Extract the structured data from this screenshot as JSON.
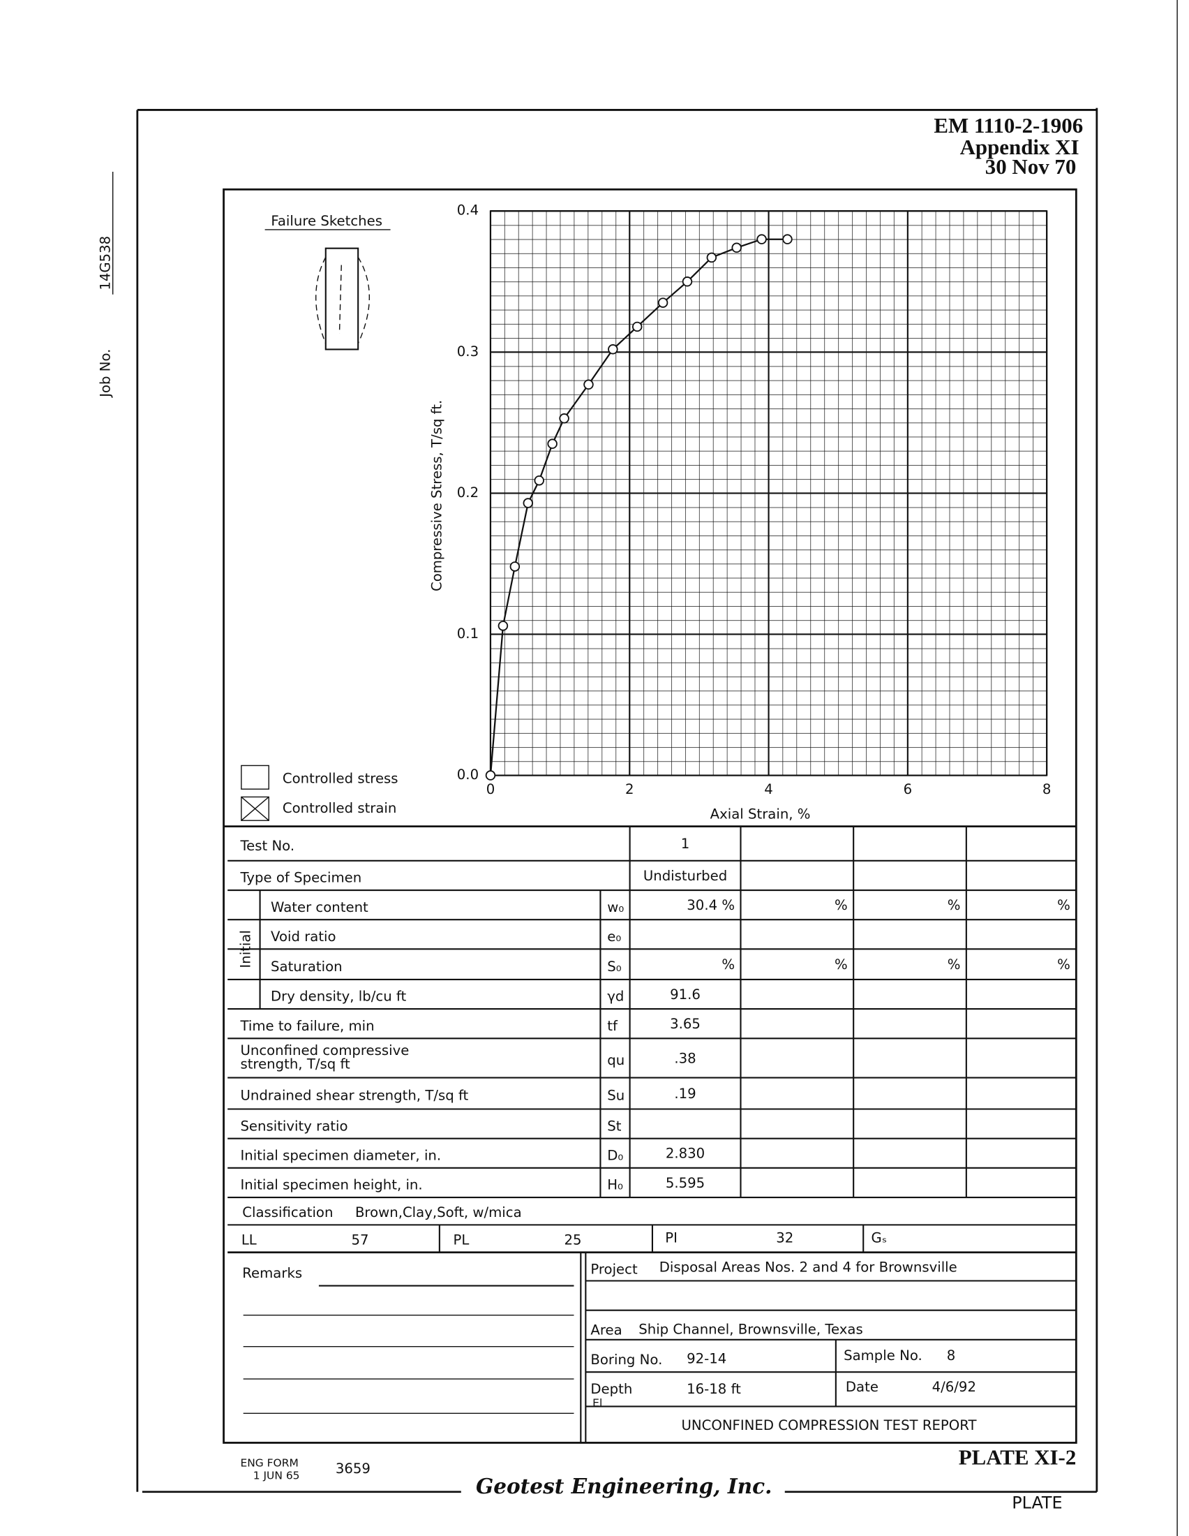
{
  "header": {
    "doc_id": "EM 1110-2-1906",
    "appendix": "Appendix XI",
    "date": "30 Nov 70"
  },
  "job": {
    "label": "Job No.",
    "number": "14G538"
  },
  "sketch_title": "Failure Sketches",
  "legend": [
    "Controlled stress",
    "Controlled strain"
  ],
  "chart_data": {
    "type": "line",
    "xlabel": "Axial Strain, %",
    "ylabel": "Compressive Stress, T/sq ft.",
    "x": [
      0,
      0.18,
      0.35,
      0.54,
      0.7,
      0.89,
      1.06,
      1.41,
      1.76,
      2.11,
      2.48,
      2.83,
      3.18,
      3.54,
      3.9,
      4.27
    ],
    "values": [
      0,
      0.106,
      0.148,
      0.193,
      0.209,
      0.235,
      0.253,
      0.277,
      0.302,
      0.318,
      0.335,
      0.35,
      0.367,
      0.374,
      0.38,
      0.38
    ],
    "color": "#111111",
    "xlim": [
      0,
      8
    ],
    "ylim": [
      0,
      0.4
    ],
    "xticks": [
      0,
      2,
      4,
      6,
      8
    ],
    "yticks": [
      {
        "value": 0,
        "label": "0.0"
      },
      0.1,
      0.2,
      0.3,
      0.4
    ],
    "grid": true
  },
  "table": {
    "group_label": "Initial",
    "rows": [
      {
        "label": "Test No.",
        "symbol": null,
        "cells": [
          "1",
          null,
          null,
          null
        ]
      },
      {
        "label": "Type of Specimen",
        "symbol": null,
        "cells": [
          "Undisturbed",
          null,
          null,
          null
        ]
      },
      {
        "label": "Water content",
        "symbol": "w₀",
        "cells": [
          "30.4 %",
          "%",
          "%",
          "%"
        ]
      },
      {
        "label": "Void ratio",
        "symbol": "e₀",
        "cells": [
          null,
          null,
          null,
          null
        ]
      },
      {
        "label": "Saturation",
        "symbol": "S₀",
        "cells": [
          "%",
          "%",
          "%",
          "%"
        ]
      },
      {
        "label": "Dry density, lb/cu ft",
        "symbol": "γd",
        "cells": [
          "91.6",
          null,
          null,
          null
        ]
      },
      {
        "label": "Time to failure, min",
        "symbol": "tf",
        "cells": [
          "3.65",
          null,
          null,
          null
        ]
      },
      {
        "label": [
          "Unconfined compressive",
          "strength, T/sq ft"
        ],
        "symbol": "qu",
        "cells": [
          ".38",
          null,
          null,
          null
        ]
      },
      {
        "label": "Undrained shear strength, T/sq ft",
        "symbol": "Su",
        "cells": [
          ".19",
          null,
          null,
          null
        ]
      },
      {
        "label": "Sensitivity ratio",
        "symbol": "St",
        "cells": [
          null,
          null,
          null,
          null
        ]
      },
      {
        "label": "Initial specimen diameter, in.",
        "symbol": "D₀",
        "cells": [
          "2.830",
          null,
          null,
          null
        ]
      },
      {
        "label": "Initial specimen height, in.",
        "symbol": "H₀",
        "cells": [
          "5.595",
          null,
          null,
          null
        ]
      }
    ]
  },
  "classification": {
    "label": "Classification",
    "value": "Brown,Clay,Soft, w/mica"
  },
  "limits": {
    "ll_label": "LL",
    "ll": "57",
    "pl_label": "PL",
    "pl": "25",
    "pi_label": "PI",
    "pi": "32",
    "gs_label": "Gₛ"
  },
  "remarks_label": "Remarks",
  "project": {
    "label": "Project",
    "value": "Disposal Areas Nos. 2 and 4 for Brownsville"
  },
  "area": {
    "label": "Area",
    "value": "Ship Channel, Brownsville, Texas"
  },
  "boring": {
    "label": "Boring No.",
    "value": "92-14"
  },
  "sample": {
    "label": "Sample No.",
    "value": "8"
  },
  "depth": {
    "label": "Depth",
    "sublabel": "El",
    "value": "16-18 ft"
  },
  "date": {
    "label": "Date",
    "value": "4/6/92"
  },
  "report_title": "UNCONFINED COMPRESSION TEST REPORT",
  "footer": {
    "form": "ENG FORM",
    "form_date": "1 JUN 65",
    "form_no": "3659",
    "company": "Geotest Engineering, Inc.",
    "plate": "PLATE XI-2",
    "plate_short": "PLATE"
  }
}
